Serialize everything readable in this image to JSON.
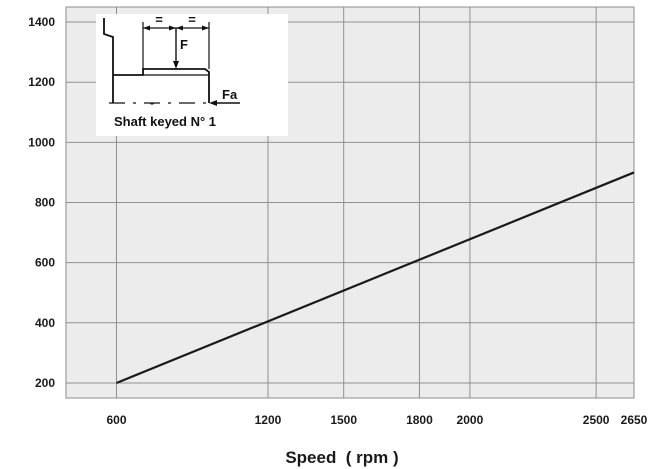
{
  "chart_data": {
    "type": "line",
    "title": "",
    "xlabel": "Speed  ( rpm )",
    "ylabel": "",
    "x_ticks": [
      600,
      1200,
      1500,
      1800,
      2000,
      2500,
      2650
    ],
    "y_ticks": [
      200,
      400,
      600,
      800,
      1000,
      1200,
      1400
    ],
    "xlim": [
      400,
      2650
    ],
    "ylim": [
      150,
      1450
    ],
    "grid": true,
    "series": [
      {
        "x": [
          600,
          2650
        ],
        "y": [
          200,
          900
        ]
      }
    ]
  },
  "inset": {
    "caption": "Shaft keyed N° 1",
    "force_label": "F",
    "axial_label": "Fa",
    "equal_left": "=",
    "equal_right": "=",
    "dash": "-"
  },
  "colors": {
    "plot_background": "#ececec",
    "grid": "#909090",
    "line": "#1a1a1a"
  }
}
